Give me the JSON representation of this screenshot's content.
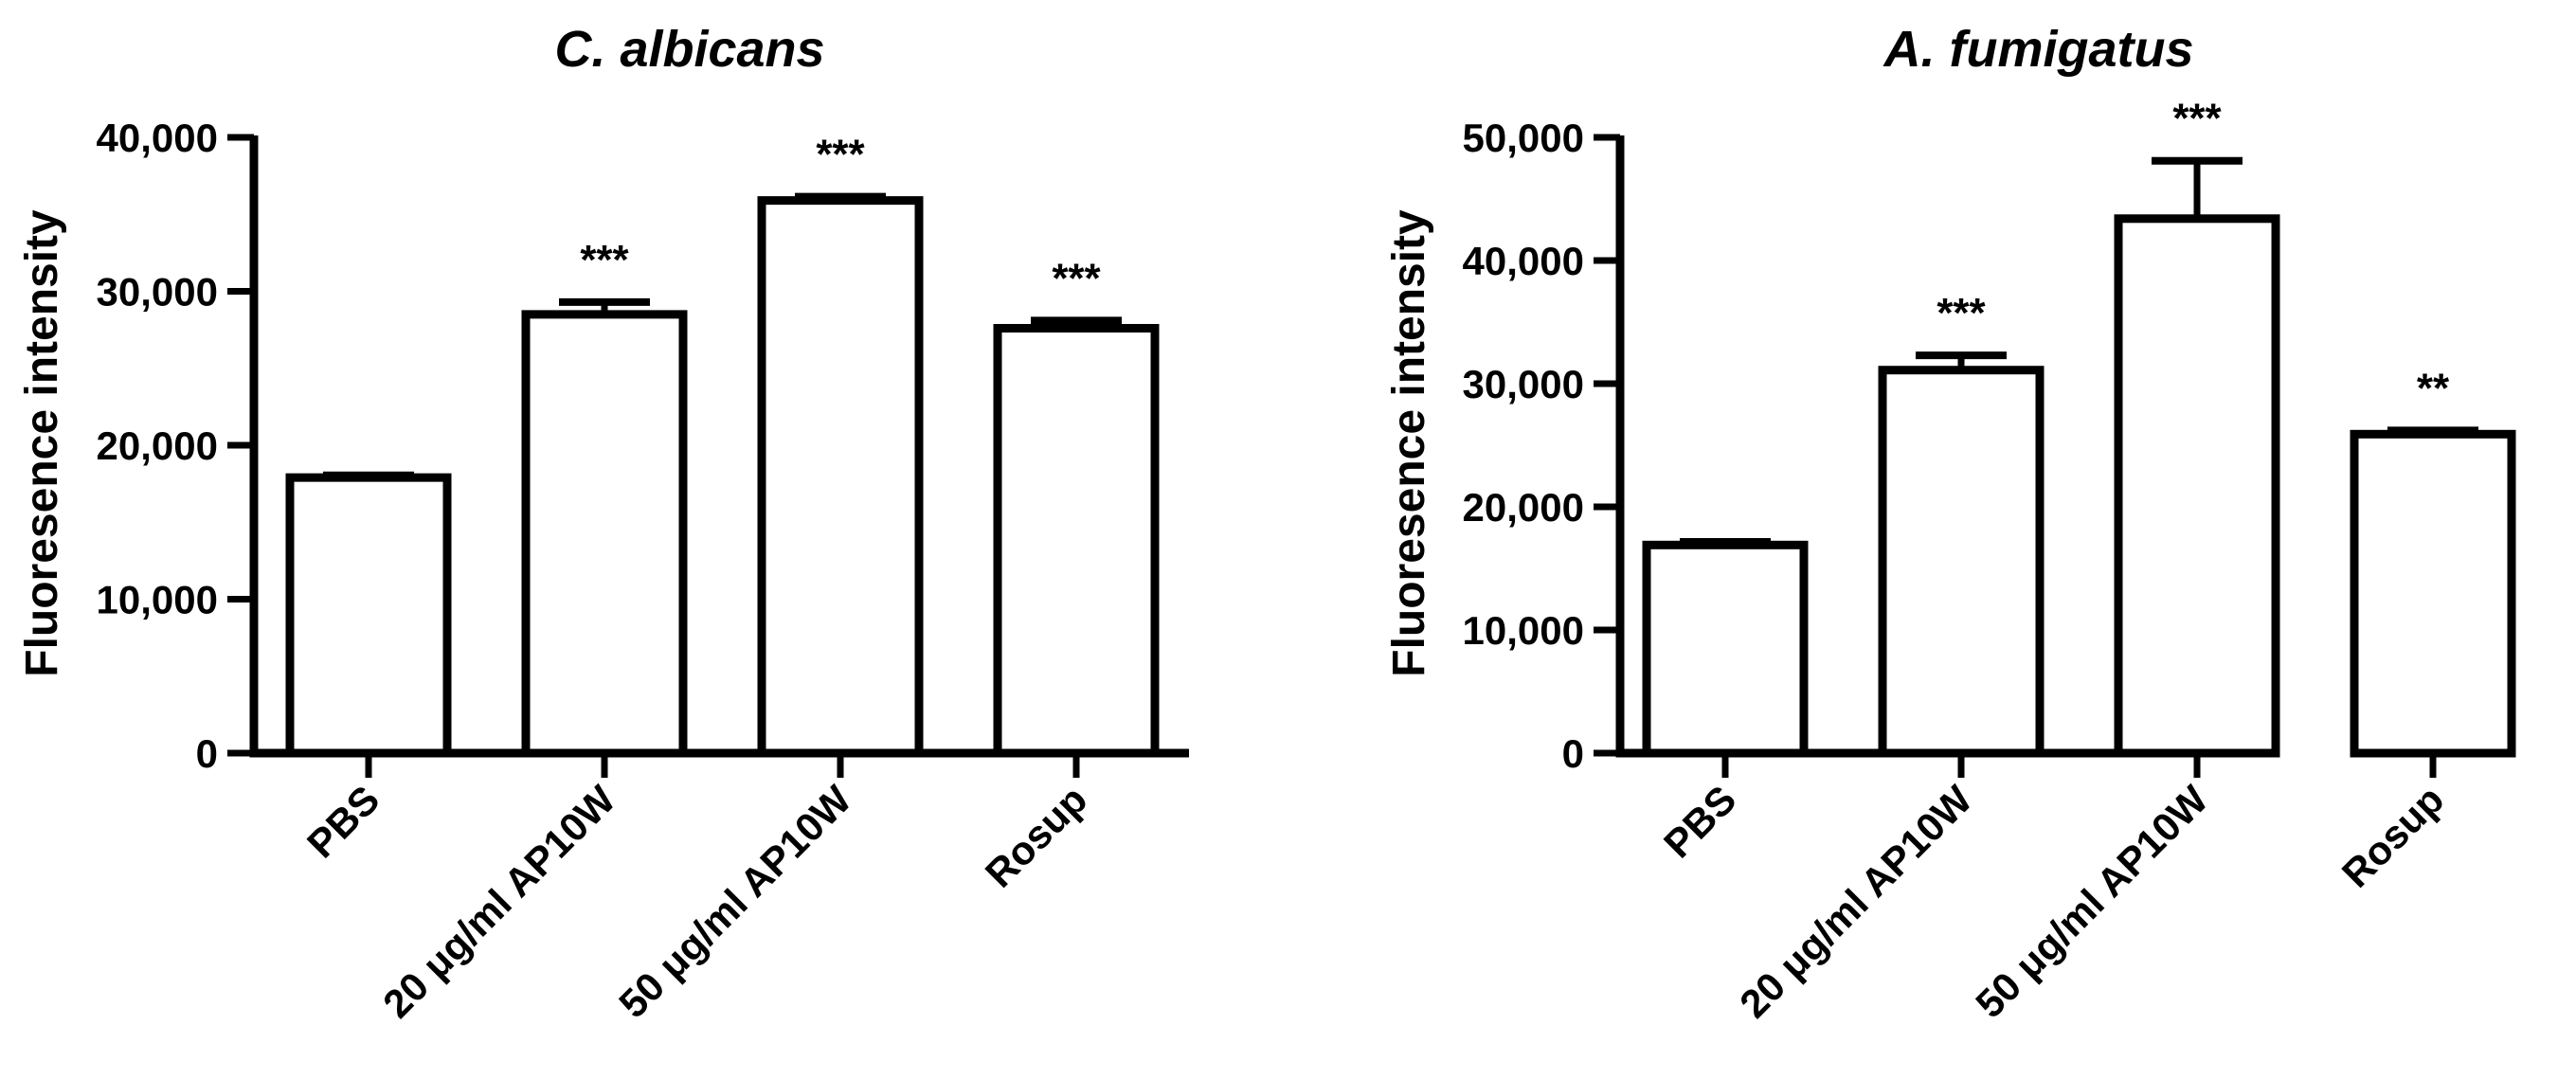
{
  "chart_data": [
    {
      "type": "bar",
      "title": "C. albicans",
      "xlabel": "",
      "ylabel": "Fluoresence intensity",
      "ylim": [
        0,
        40000
      ],
      "yticks": [
        0,
        10000,
        20000,
        30000,
        40000
      ],
      "ytick_labels": [
        "0",
        "10,000",
        "20,000",
        "30,000",
        "40,000"
      ],
      "categories": [
        "PBS",
        "20 μg/ml AP10W",
        "50 μg/ml AP10W",
        "Rosup"
      ],
      "values": [
        17900,
        28500,
        35900,
        27600
      ],
      "errors": [
        150,
        800,
        250,
        500
      ],
      "significance": [
        "",
        "***",
        "***",
        "***"
      ],
      "grid": false,
      "bar_fill": "#ffffff",
      "bar_stroke": "#000000"
    },
    {
      "type": "bar",
      "title": "A. fumigatus",
      "xlabel": "",
      "ylabel": "Fluoresence intensity",
      "ylim": [
        0,
        50000
      ],
      "yticks": [
        0,
        10000,
        20000,
        30000,
        40000,
        50000
      ],
      "ytick_labels": [
        "0",
        "10,000",
        "20,000",
        "30,000",
        "40,000",
        "50,000"
      ],
      "categories": [
        "PBS",
        "20 μg/ml AP10W",
        "50 μg/ml AP10W",
        "Rosup"
      ],
      "values": [
        16900,
        31100,
        43400,
        25900
      ],
      "errors": [
        250,
        1200,
        4700,
        300
      ],
      "significance": [
        "",
        "***",
        "***",
        "**"
      ],
      "grid": false,
      "bar_fill": "#ffffff",
      "bar_stroke": "#000000"
    }
  ]
}
